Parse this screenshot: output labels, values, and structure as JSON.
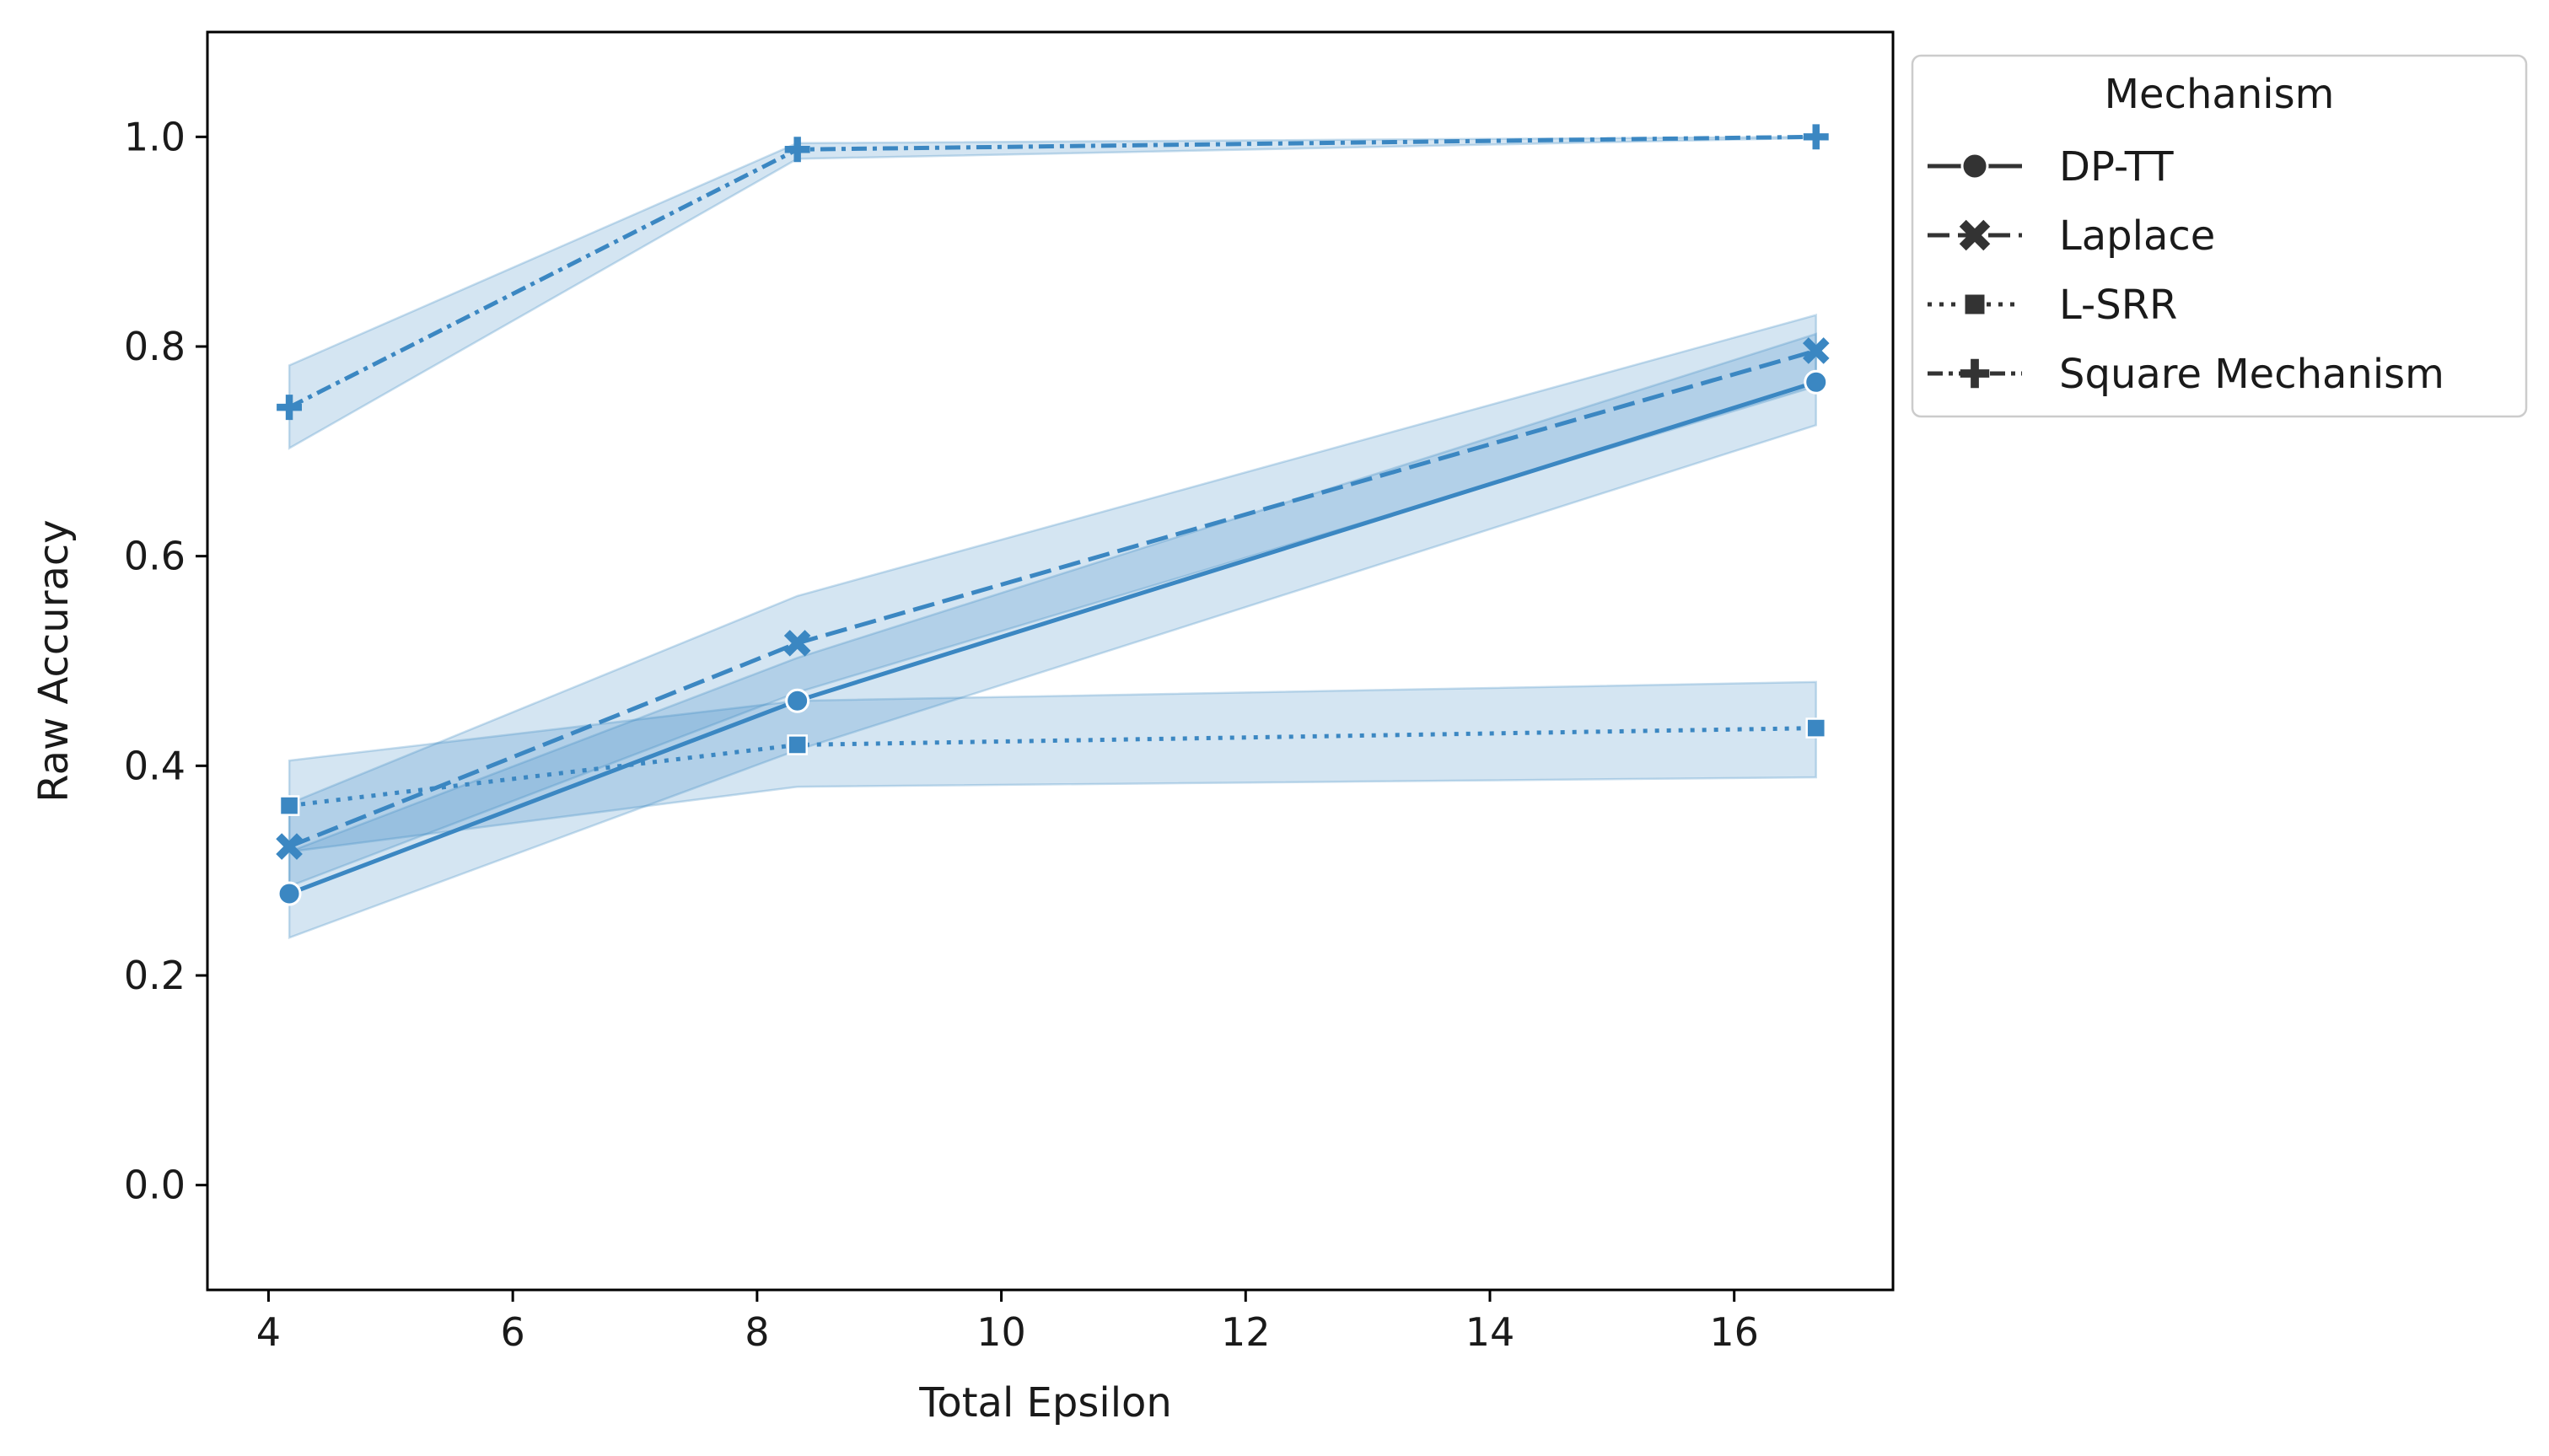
{
  "chart_data": {
    "type": "line",
    "xlabel": "Total Epsilon",
    "ylabel": "Raw Accuracy",
    "xlim": [
      3.5,
      17.3
    ],
    "ylim": [
      -0.1,
      1.1
    ],
    "xticks": [
      4,
      6,
      8,
      10,
      12,
      14,
      16
    ],
    "yticks": [
      0.0,
      0.2,
      0.4,
      0.6,
      0.8,
      1.0
    ],
    "xtick_labels": [
      "4",
      "6",
      "8",
      "10",
      "12",
      "14",
      "16"
    ],
    "ytick_labels": [
      "0.0",
      "0.2",
      "0.4",
      "0.6",
      "0.8",
      "1.0"
    ],
    "grid": false,
    "legend": {
      "title": "Mechanism",
      "placement": "outside-upper-right"
    },
    "color": "#3b87c2",
    "band_color": "#a9c9e3",
    "x": [
      4.17,
      8.33,
      16.67
    ],
    "series": [
      {
        "name": "DP-TT",
        "marker": "circle",
        "dash": "solid",
        "values": [
          0.278,
          0.462,
          0.766
        ],
        "ci_low": [
          0.236,
          0.415,
          0.725
        ],
        "ci_high": [
          0.318,
          0.503,
          0.812
        ]
      },
      {
        "name": "Laplace",
        "marker": "x",
        "dash": "dashed",
        "values": [
          0.323,
          0.517,
          0.796
        ],
        "ci_low": [
          0.285,
          0.47,
          0.762
        ],
        "ci_high": [
          0.364,
          0.562,
          0.83
        ]
      },
      {
        "name": "L-SRR",
        "marker": "square",
        "dash": "dotted",
        "values": [
          0.362,
          0.42,
          0.436
        ],
        "ci_low": [
          0.318,
          0.38,
          0.389
        ],
        "ci_high": [
          0.405,
          0.462,
          0.48
        ]
      },
      {
        "name": "Square Mechanism",
        "marker": "plus",
        "dash": "dashdot",
        "values": [
          0.742,
          0.988,
          1.0
        ],
        "ci_low": [
          0.703,
          0.979,
          0.999
        ],
        "ci_high": [
          0.782,
          0.994,
          1.0
        ]
      }
    ]
  }
}
